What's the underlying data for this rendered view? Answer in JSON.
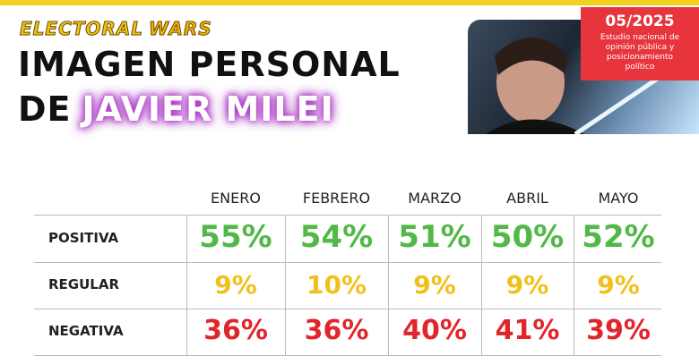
{
  "header": {
    "brand": [
      "ELECTORAL",
      "WARS"
    ],
    "title_line1": "IMAGEN PERSONAL",
    "title_prefix": "DE",
    "title_highlight": "JAVIER MILEI"
  },
  "badge": {
    "date": "05/2025",
    "description": "Estudio nacional de opinión pública y posicionamiento político"
  },
  "table": {
    "columns": [
      "ENERO",
      "FEBRERO",
      "MARZO",
      "ABRIL",
      "MAYO"
    ],
    "rows": [
      {
        "label": "POSITIVA",
        "values": [
          "55%",
          "54%",
          "51%",
          "50%",
          "52%"
        ]
      },
      {
        "label": "REGULAR",
        "values": [
          "9%",
          "10%",
          "9%",
          "9%",
          "9%"
        ]
      },
      {
        "label": "NEGATIVA",
        "values": [
          "36%",
          "36%",
          "40%",
          "41%",
          "39%"
        ]
      }
    ]
  }
}
